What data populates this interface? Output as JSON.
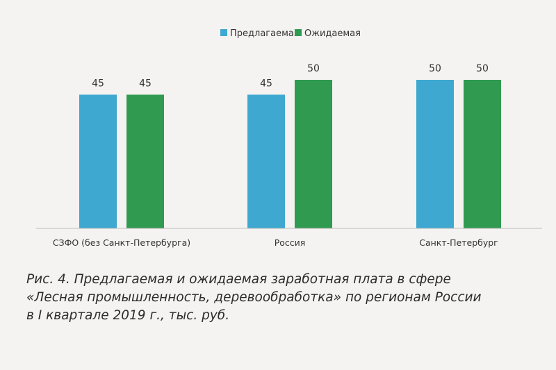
{
  "chart_data": {
    "type": "bar",
    "categories": [
      "СЗФО (без Санкт-Петербурга)",
      "Россия",
      "Санкт-Петербург"
    ],
    "series": [
      {
        "name": "Предлагаемая",
        "values": [
          45,
          45,
          50
        ],
        "color": "#3ea8d0"
      },
      {
        "name": "Ожидаемая",
        "values": [
          45,
          50,
          50
        ],
        "color": "#2f9a50"
      }
    ],
    "legend_position": "top-center",
    "ylim": [
      0,
      55
    ],
    "grid": false,
    "data_labels": true
  },
  "caption": {
    "lines": [
      "Рис. 4. Предлагаемая и ожидаемая заработная плата в сфере",
      "«Лесная промышленность, деревообработка» по регионам России",
      "в I квартале 2019 г., тыс. руб."
    ]
  }
}
